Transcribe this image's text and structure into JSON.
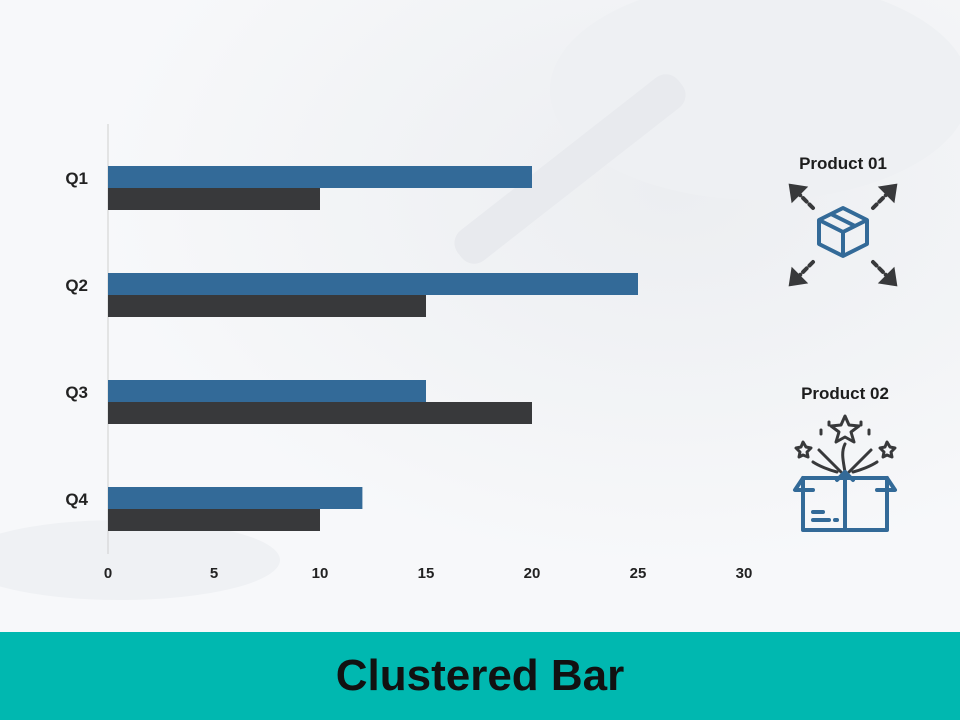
{
  "slide": {
    "title": "Clustered Bar"
  },
  "legend": {
    "product_01": "Product 01",
    "product_02": "Product 02"
  },
  "colors": {
    "product_01": "#336a98",
    "product_02": "#38393b",
    "footer": "#00b8b0"
  },
  "icons": {
    "product_01": "box-expand-icon",
    "product_02": "box-fireworks-icon"
  },
  "chart_data": {
    "type": "bar",
    "orientation": "horizontal",
    "categories": [
      "Q1",
      "Q2",
      "Q3",
      "Q4"
    ],
    "series": [
      {
        "name": "Product 01",
        "values": [
          20,
          25,
          15,
          12
        ]
      },
      {
        "name": "Product 02",
        "values": [
          10,
          15,
          20,
          10
        ]
      }
    ],
    "xlim": [
      0,
      30
    ],
    "xticks": [
      0,
      5,
      10,
      15,
      20,
      25,
      30
    ],
    "grid": false,
    "legend_position": "right"
  }
}
